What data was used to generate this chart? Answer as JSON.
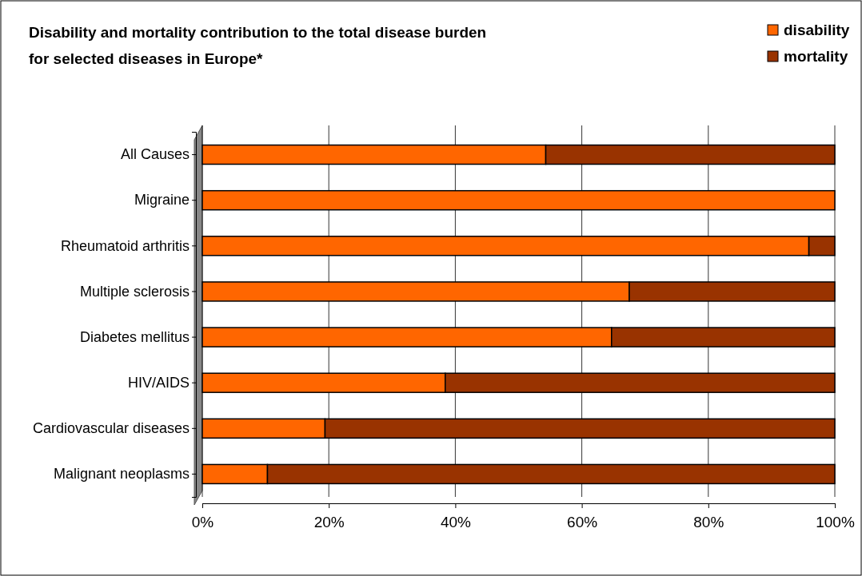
{
  "chart_data": {
    "type": "bar",
    "orientation": "horizontal",
    "stacked": true,
    "title": "Disability and mortality contribution to the total disease burden\nfor selected diseases in Europe*",
    "categories": [
      "All Causes",
      "Migraine",
      "Rheumatoid arthritis",
      "Multiple sclerosis",
      "Diabetes mellitus",
      "HIV/AIDS",
      "Cardiovascular diseases",
      "Malignant neoplasms"
    ],
    "series": [
      {
        "name": "disability",
        "color": "#ff6600",
        "values": [
          54.3,
          100,
          95.9,
          67.5,
          64.7,
          38.4,
          19.4,
          10.3
        ]
      },
      {
        "name": "mortality",
        "color": "#993300",
        "values": [
          45.7,
          0,
          4.1,
          32.5,
          35.3,
          61.6,
          80.6,
          89.7
        ]
      }
    ],
    "xlim": [
      0,
      100
    ],
    "xticks": [
      {
        "value": 0,
        "label": "0%"
      },
      {
        "value": 20,
        "label": "20%"
      },
      {
        "value": 40,
        "label": "40%"
      },
      {
        "value": 60,
        "label": "60%"
      },
      {
        "value": 80,
        "label": "80%"
      },
      {
        "value": 100,
        "label": "100%"
      }
    ],
    "grid": "x",
    "legend": "top right"
  }
}
